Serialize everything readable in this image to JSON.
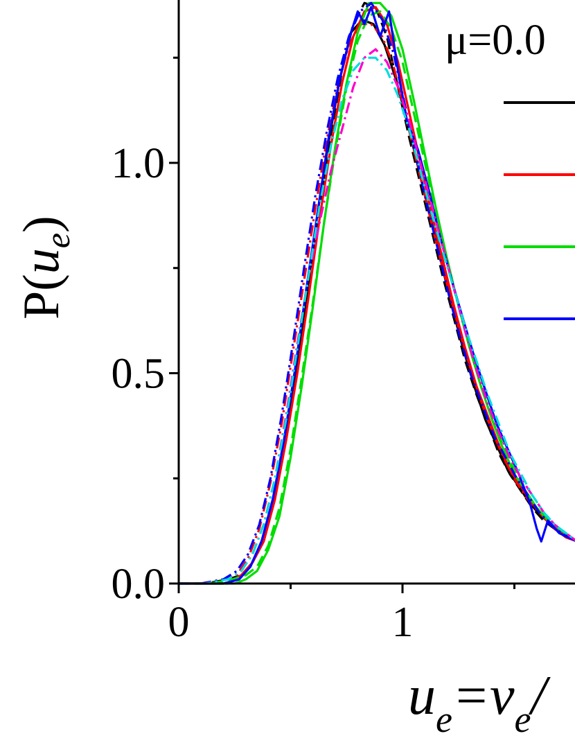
{
  "chart_data": {
    "type": "line",
    "title": "",
    "xlabel": {
      "main": "u",
      "sub": "e",
      "rest": "=v",
      "sub2": "e",
      "tail": "/"
    },
    "ylabel": {
      "prefix": "P(",
      "var": "u",
      "sub": "e",
      "suffix": ")"
    },
    "xlim": [
      0,
      1.78
    ],
    "ylim": [
      0,
      1.38
    ],
    "x_ticks": [
      {
        "value": 0,
        "label": "0"
      },
      {
        "value": 1,
        "label": "1"
      }
    ],
    "y_ticks": [
      {
        "value": 0.0,
        "label": "0.0"
      },
      {
        "value": 0.5,
        "label": "0.5"
      },
      {
        "value": 1.0,
        "label": "1.0"
      }
    ],
    "x_minor_ticks": [
      0.5,
      1.5
    ],
    "y_minor_ticks": [
      0.25,
      0.75,
      1.25
    ],
    "legend": {
      "position": "top-right",
      "title": "μ=0.0",
      "entries": [
        {
          "color": "#000000"
        },
        {
          "color": "#ff0000"
        },
        {
          "color": "#00dd00"
        },
        {
          "color": "#0000ff"
        }
      ]
    },
    "series": [
      {
        "color": "#000000",
        "style": "solid",
        "x": [
          0,
          0.1,
          0.2,
          0.27,
          0.32,
          0.37,
          0.42,
          0.47,
          0.52,
          0.57,
          0.62,
          0.67,
          0.72,
          0.77,
          0.82,
          0.87,
          0.92,
          0.97,
          1.02,
          1.07,
          1.12,
          1.17,
          1.22,
          1.27,
          1.32,
          1.37,
          1.42,
          1.47,
          1.52,
          1.57,
          1.62,
          1.67,
          1.72,
          1.78
        ],
        "y": [
          0,
          0,
          0,
          0.01,
          0.04,
          0.1,
          0.19,
          0.33,
          0.5,
          0.68,
          0.88,
          1.05,
          1.2,
          1.31,
          1.34,
          1.33,
          1.28,
          1.2,
          1.1,
          0.99,
          0.88,
          0.77,
          0.66,
          0.56,
          0.47,
          0.39,
          0.33,
          0.27,
          0.23,
          0.19,
          0.16,
          0.14,
          0.12,
          0.1
        ]
      },
      {
        "color": "#000000",
        "style": "dash",
        "x": [
          0,
          0.12,
          0.22,
          0.28,
          0.33,
          0.38,
          0.43,
          0.48,
          0.53,
          0.58,
          0.63,
          0.68,
          0.73,
          0.78,
          0.83,
          0.88,
          0.93,
          0.98,
          1.03,
          1.08,
          1.13,
          1.18,
          1.23,
          1.28,
          1.33,
          1.38,
          1.43,
          1.48,
          1.53,
          1.58,
          1.63,
          1.68,
          1.73,
          1.78
        ],
        "y": [
          0,
          0,
          0.01,
          0.02,
          0.05,
          0.11,
          0.21,
          0.35,
          0.52,
          0.7,
          0.9,
          1.07,
          1.22,
          1.33,
          1.38,
          1.37,
          1.3,
          1.18,
          1.06,
          0.95,
          0.84,
          0.73,
          0.63,
          0.53,
          0.45,
          0.38,
          0.31,
          0.26,
          0.22,
          0.18,
          0.15,
          0.13,
          0.11,
          0.1
        ]
      },
      {
        "color": "#ff0000",
        "style": "solid",
        "x": [
          0,
          0.12,
          0.22,
          0.28,
          0.33,
          0.38,
          0.43,
          0.48,
          0.53,
          0.58,
          0.63,
          0.68,
          0.73,
          0.78,
          0.83,
          0.88,
          0.93,
          0.98,
          1.03,
          1.08,
          1.13,
          1.18,
          1.23,
          1.28,
          1.33,
          1.38,
          1.43,
          1.48,
          1.53,
          1.58,
          1.63,
          1.68,
          1.73,
          1.78
        ],
        "y": [
          0,
          0,
          0,
          0.02,
          0.05,
          0.1,
          0.2,
          0.34,
          0.5,
          0.68,
          0.87,
          1.04,
          1.19,
          1.3,
          1.36,
          1.37,
          1.33,
          1.24,
          1.12,
          1.0,
          0.88,
          0.77,
          0.66,
          0.56,
          0.47,
          0.4,
          0.33,
          0.27,
          0.23,
          0.19,
          0.16,
          0.13,
          0.11,
          0.1
        ]
      },
      {
        "color": "#ff0000",
        "style": "dashdot",
        "x": [
          0,
          0.1,
          0.2,
          0.26,
          0.31,
          0.36,
          0.41,
          0.46,
          0.51,
          0.56,
          0.61,
          0.66,
          0.71,
          0.76,
          0.81,
          0.86,
          0.91,
          0.96,
          1.01,
          1.06,
          1.11,
          1.16,
          1.21,
          1.26,
          1.31,
          1.36,
          1.41,
          1.46,
          1.51,
          1.56,
          1.61,
          1.66,
          1.71,
          1.78
        ],
        "y": [
          0,
          0,
          0.01,
          0.02,
          0.06,
          0.13,
          0.24,
          0.38,
          0.55,
          0.72,
          0.89,
          1.05,
          1.18,
          1.28,
          1.33,
          1.33,
          1.3,
          1.23,
          1.12,
          1.01,
          0.9,
          0.79,
          0.69,
          0.59,
          0.5,
          0.42,
          0.35,
          0.29,
          0.24,
          0.2,
          0.17,
          0.14,
          0.12,
          0.1
        ]
      },
      {
        "color": "#00dd00",
        "style": "solid",
        "x": [
          0,
          0.15,
          0.25,
          0.3,
          0.35,
          0.4,
          0.45,
          0.5,
          0.55,
          0.6,
          0.65,
          0.7,
          0.75,
          0.8,
          0.85,
          0.9,
          0.95,
          1.0,
          1.05,
          1.1,
          1.15,
          1.2,
          1.25,
          1.3,
          1.35,
          1.4,
          1.45,
          1.5,
          1.55,
          1.6,
          1.65,
          1.7,
          1.78
        ],
        "y": [
          0,
          0,
          0,
          0.01,
          0.03,
          0.08,
          0.16,
          0.3,
          0.47,
          0.66,
          0.86,
          1.04,
          1.19,
          1.31,
          1.38,
          1.38,
          1.35,
          1.27,
          1.15,
          1.02,
          0.89,
          0.77,
          0.66,
          0.56,
          0.47,
          0.39,
          0.32,
          0.26,
          0.22,
          0.18,
          0.15,
          0.13,
          0.1
        ]
      },
      {
        "color": "#00dd00",
        "style": "dash",
        "x": [
          0,
          0.14,
          0.24,
          0.3,
          0.35,
          0.4,
          0.45,
          0.5,
          0.55,
          0.6,
          0.65,
          0.7,
          0.75,
          0.8,
          0.85,
          0.9,
          0.95,
          1.0,
          1.05,
          1.1,
          1.15,
          1.2,
          1.25,
          1.3,
          1.35,
          1.4,
          1.45,
          1.5,
          1.55,
          1.6,
          1.65,
          1.7,
          1.78
        ],
        "y": [
          0,
          0,
          0.01,
          0.02,
          0.04,
          0.09,
          0.18,
          0.32,
          0.49,
          0.67,
          0.86,
          1.03,
          1.18,
          1.29,
          1.35,
          1.36,
          1.32,
          1.24,
          1.12,
          1.0,
          0.88,
          0.77,
          0.66,
          0.56,
          0.47,
          0.39,
          0.33,
          0.27,
          0.22,
          0.18,
          0.15,
          0.12,
          0.1
        ]
      },
      {
        "color": "#0000ff",
        "style": "solid",
        "x": [
          0,
          0.1,
          0.2,
          0.27,
          0.32,
          0.37,
          0.42,
          0.47,
          0.52,
          0.57,
          0.62,
          0.67,
          0.72,
          0.77,
          0.8,
          0.83,
          0.86,
          0.9,
          0.94,
          0.98,
          1.02,
          1.07,
          1.12,
          1.17,
          1.22,
          1.27,
          1.32,
          1.37,
          1.42,
          1.47,
          1.52,
          1.57,
          1.6,
          1.62,
          1.65,
          1.7,
          1.78
        ],
        "y": [
          0,
          0,
          0,
          0.01,
          0.04,
          0.1,
          0.2,
          0.34,
          0.51,
          0.7,
          0.88,
          1.06,
          1.2,
          1.31,
          1.36,
          1.33,
          1.37,
          1.3,
          1.36,
          1.22,
          1.1,
          1.03,
          0.93,
          0.82,
          0.72,
          0.63,
          0.54,
          0.46,
          0.38,
          0.32,
          0.26,
          0.19,
          0.13,
          0.1,
          0.15,
          0.12,
          0.1
        ]
      },
      {
        "color": "#0000ff",
        "style": "dashdot",
        "x": [
          0,
          0.1,
          0.2,
          0.26,
          0.31,
          0.36,
          0.41,
          0.46,
          0.51,
          0.56,
          0.61,
          0.66,
          0.71,
          0.76,
          0.81,
          0.86,
          0.91,
          0.96,
          1.01,
          1.06,
          1.11,
          1.16,
          1.21,
          1.26,
          1.31,
          1.36,
          1.41,
          1.46,
          1.51,
          1.56,
          1.61,
          1.66,
          1.71,
          1.78
        ],
        "y": [
          0,
          0,
          0.01,
          0.03,
          0.07,
          0.14,
          0.25,
          0.4,
          0.57,
          0.75,
          0.92,
          1.07,
          1.2,
          1.3,
          1.36,
          1.38,
          1.34,
          1.26,
          1.14,
          1.02,
          0.9,
          0.79,
          0.68,
          0.58,
          0.49,
          0.42,
          0.35,
          0.3,
          0.25,
          0.21,
          0.17,
          0.14,
          0.12,
          0.1
        ]
      },
      {
        "color": "#ff00cc",
        "style": "dashdot",
        "x": [
          0,
          0.12,
          0.22,
          0.28,
          0.33,
          0.38,
          0.43,
          0.48,
          0.53,
          0.58,
          0.63,
          0.68,
          0.73,
          0.78,
          0.83,
          0.88,
          0.93,
          0.98,
          1.03,
          1.08,
          1.13,
          1.18,
          1.23,
          1.28,
          1.33,
          1.38,
          1.43,
          1.48,
          1.53,
          1.58,
          1.63,
          1.68,
          1.73,
          1.78
        ],
        "y": [
          0,
          0,
          0.01,
          0.03,
          0.07,
          0.14,
          0.25,
          0.4,
          0.57,
          0.73,
          0.86,
          0.98,
          1.08,
          1.18,
          1.25,
          1.27,
          1.24,
          1.18,
          1.1,
          1.0,
          0.9,
          0.8,
          0.7,
          0.6,
          0.51,
          0.43,
          0.36,
          0.3,
          0.25,
          0.21,
          0.17,
          0.14,
          0.12,
          0.1
        ]
      },
      {
        "color": "#00dddd",
        "style": "dashdot",
        "x": [
          0,
          0.12,
          0.22,
          0.28,
          0.33,
          0.38,
          0.43,
          0.48,
          0.53,
          0.58,
          0.63,
          0.68,
          0.73,
          0.78,
          0.83,
          0.88,
          0.93,
          0.98,
          1.03,
          1.08,
          1.13,
          1.18,
          1.23,
          1.28,
          1.33,
          1.38,
          1.43,
          1.48,
          1.53,
          1.58,
          1.63,
          1.68,
          1.73,
          1.78
        ],
        "y": [
          0,
          0,
          0.01,
          0.03,
          0.07,
          0.14,
          0.25,
          0.39,
          0.56,
          0.73,
          0.9,
          1.04,
          1.15,
          1.22,
          1.25,
          1.25,
          1.22,
          1.16,
          1.08,
          0.98,
          0.88,
          0.79,
          0.7,
          0.61,
          0.53,
          0.45,
          0.38,
          0.31,
          0.26,
          0.21,
          0.17,
          0.14,
          0.12,
          0.1
        ]
      }
    ]
  }
}
